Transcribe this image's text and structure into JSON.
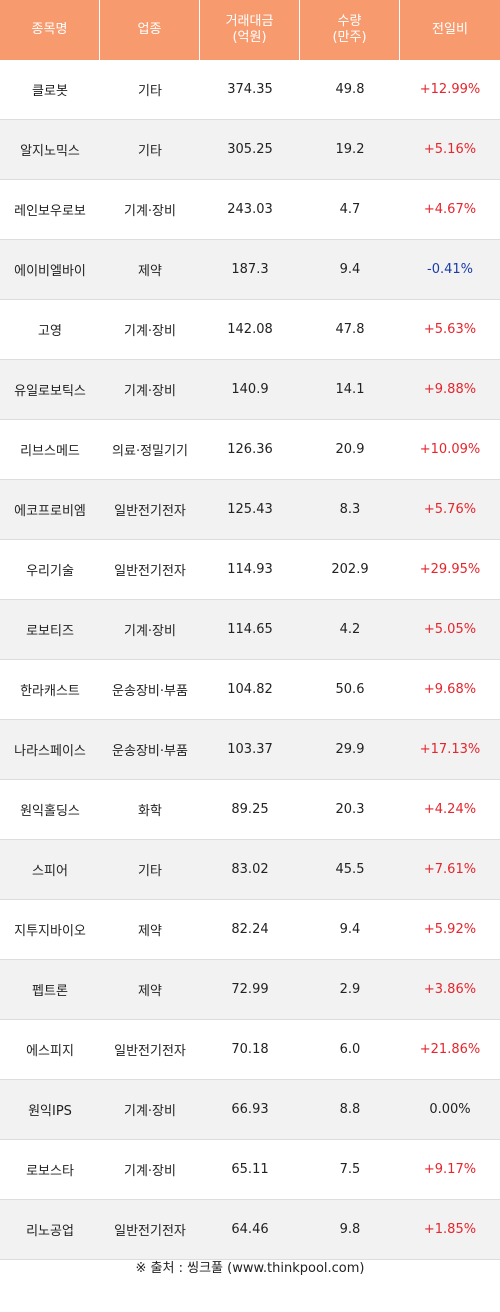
{
  "header": {
    "name": "종목명",
    "sector": "업종",
    "amount_line1": "거래대금",
    "amount_line2": "(억원)",
    "volume_line1": "수량",
    "volume_line2": "(만주)",
    "change": "전일비"
  },
  "colors": {
    "header_bg": "#f79a6e",
    "up": "#e5262d",
    "down": "#1a3ca8",
    "row_alt": "#f2f2f2"
  },
  "rows": [
    {
      "name": "클로봇",
      "sector": "기타",
      "amount": "374.35",
      "volume": "49.8",
      "change": "+12.99%",
      "dir": "up"
    },
    {
      "name": "알지노믹스",
      "sector": "기타",
      "amount": "305.25",
      "volume": "19.2",
      "change": "+5.16%",
      "dir": "up"
    },
    {
      "name": "레인보우로보",
      "sector": "기계·장비",
      "amount": "243.03",
      "volume": "4.7",
      "change": "+4.67%",
      "dir": "up"
    },
    {
      "name": "에이비엘바이",
      "sector": "제약",
      "amount": "187.3",
      "volume": "9.4",
      "change": "-0.41%",
      "dir": "down"
    },
    {
      "name": "고영",
      "sector": "기계·장비",
      "amount": "142.08",
      "volume": "47.8",
      "change": "+5.63%",
      "dir": "up"
    },
    {
      "name": "유일로보틱스",
      "sector": "기계·장비",
      "amount": "140.9",
      "volume": "14.1",
      "change": "+9.88%",
      "dir": "up"
    },
    {
      "name": "리브스메드",
      "sector": "의료·정밀기기",
      "amount": "126.36",
      "volume": "20.9",
      "change": "+10.09%",
      "dir": "up"
    },
    {
      "name": "에코프로비엠",
      "sector": "일반전기전자",
      "amount": "125.43",
      "volume": "8.3",
      "change": "+5.76%",
      "dir": "up"
    },
    {
      "name": "우리기술",
      "sector": "일반전기전자",
      "amount": "114.93",
      "volume": "202.9",
      "change": "+29.95%",
      "dir": "up"
    },
    {
      "name": "로보티즈",
      "sector": "기계·장비",
      "amount": "114.65",
      "volume": "4.2",
      "change": "+5.05%",
      "dir": "up"
    },
    {
      "name": "한라캐스트",
      "sector": "운송장비·부품",
      "amount": "104.82",
      "volume": "50.6",
      "change": "+9.68%",
      "dir": "up"
    },
    {
      "name": "나라스페이스",
      "sector": "운송장비·부품",
      "amount": "103.37",
      "volume": "29.9",
      "change": "+17.13%",
      "dir": "up"
    },
    {
      "name": "원익홀딩스",
      "sector": "화학",
      "amount": "89.25",
      "volume": "20.3",
      "change": "+4.24%",
      "dir": "up"
    },
    {
      "name": "스피어",
      "sector": "기타",
      "amount": "83.02",
      "volume": "45.5",
      "change": "+7.61%",
      "dir": "up"
    },
    {
      "name": "지투지바이오",
      "sector": "제약",
      "amount": "82.24",
      "volume": "9.4",
      "change": "+5.92%",
      "dir": "up"
    },
    {
      "name": "펩트론",
      "sector": "제약",
      "amount": "72.99",
      "volume": "2.9",
      "change": "+3.86%",
      "dir": "up"
    },
    {
      "name": "에스피지",
      "sector": "일반전기전자",
      "amount": "70.18",
      "volume": "6.0",
      "change": "+21.86%",
      "dir": "up"
    },
    {
      "name": "원익IPS",
      "sector": "기계·장비",
      "amount": "66.93",
      "volume": "8.8",
      "change": "0.00%",
      "dir": "flat"
    },
    {
      "name": "로보스타",
      "sector": "기계·장비",
      "amount": "65.11",
      "volume": "7.5",
      "change": "+9.17%",
      "dir": "up"
    },
    {
      "name": "리노공업",
      "sector": "일반전기전자",
      "amount": "64.46",
      "volume": "9.8",
      "change": "+1.85%",
      "dir": "up"
    }
  ],
  "source": "※ 출처 : 씽크풀 (www.thinkpool.com)"
}
